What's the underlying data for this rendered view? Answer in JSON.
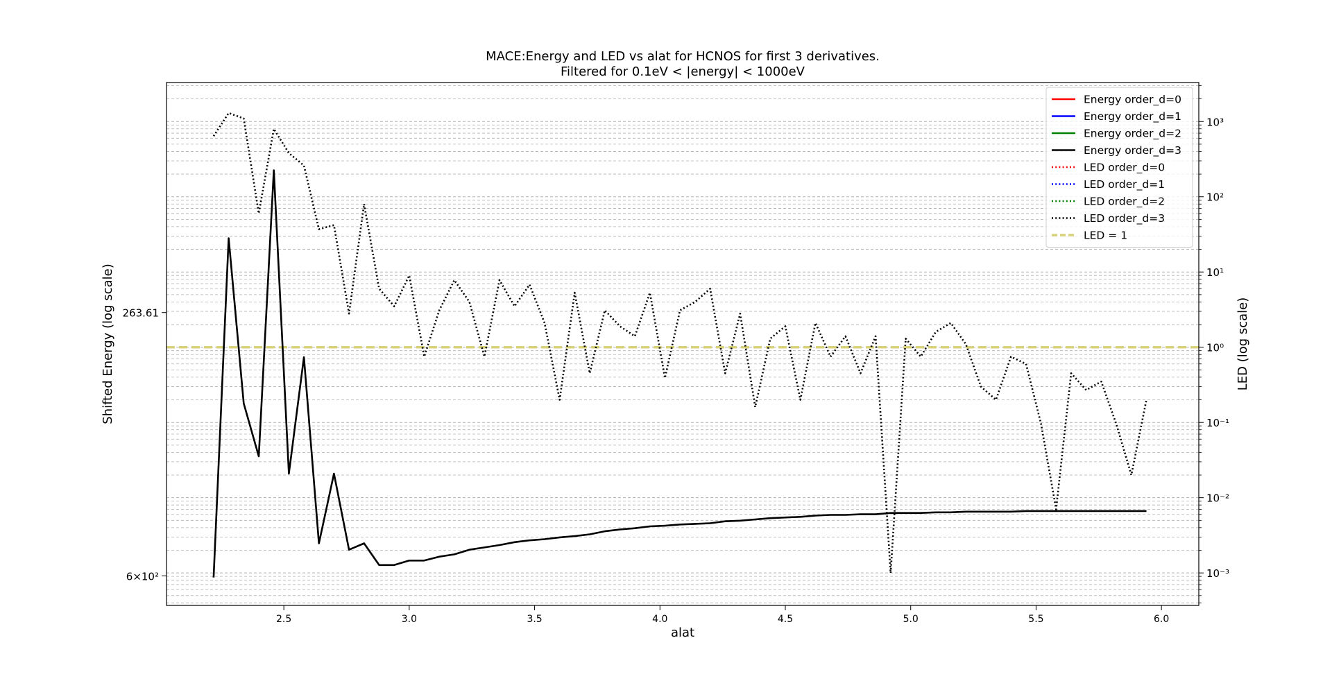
{
  "chart_data": {
    "type": "line",
    "title": "MACE:Energy and LED vs alat for HCNOS for first 3 derivatives.",
    "subtitle": "Filtered for 0.1eV < |energy| < 1000eV",
    "x_label": "alat",
    "y_label": "Shifted Energy (log scale)",
    "y2_label": "LED (log scale)",
    "xlim": [
      2.032,
      6.149
    ],
    "xticks": [
      2.5,
      {
        "value": 3,
        "label": "3.0"
      },
      3.5,
      {
        "value": 4,
        "label": "4.0"
      },
      4.5,
      {
        "value": 5,
        "label": "5.0"
      },
      5.5,
      {
        "value": 6,
        "label": "6.0"
      }
    ],
    "ylog": true,
    "ylim": [
      658,
      128.5
    ],
    "yticks": [
      {
        "value": 263.61,
        "label": "263.61"
      },
      {
        "value": 600,
        "label": "6×10²"
      }
    ],
    "y2log": true,
    "y2lim": [
      0.00037,
      3300
    ],
    "y2ticks": [
      {
        "value": 0.001,
        "label": "10⁻³"
      },
      {
        "value": 0.01,
        "label": "10⁻²"
      },
      {
        "value": 0.1,
        "label": "10⁻¹"
      },
      {
        "value": 1,
        "label": "10⁰"
      },
      {
        "value": 10,
        "label": "10¹"
      },
      {
        "value": 100,
        "label": "10²"
      },
      {
        "value": 1000,
        "label": "10³"
      }
    ],
    "grid": true,
    "legend_position": "upper right",
    "x": [
      2.22,
      2.28,
      2.34,
      2.4,
      2.46,
      2.52,
      2.58,
      2.64,
      2.7,
      2.76,
      2.82,
      2.88,
      2.94,
      3.0,
      3.06,
      3.12,
      3.18,
      3.24,
      3.3,
      3.36,
      3.42,
      3.48,
      3.54,
      3.6,
      3.66,
      3.72,
      3.78,
      3.84,
      3.9,
      3.96,
      4.02,
      4.08,
      4.14,
      4.2,
      4.26,
      4.32,
      4.38,
      4.44,
      4.5,
      4.56,
      4.62,
      4.68,
      4.74,
      4.8,
      4.86,
      4.92,
      4.98,
      5.04,
      5.1,
      5.16,
      5.22,
      5.28,
      5.34,
      5.4,
      5.46,
      5.52,
      5.58,
      5.64,
      5.7,
      5.76,
      5.82,
      5.88,
      5.94
    ],
    "series": [
      {
        "name": "Energy order_d=0",
        "color": "#ff0000",
        "linestyle": "solid",
        "axis": "y",
        "values": [
          null,
          null,
          null,
          null,
          null,
          null,
          null,
          null,
          null,
          null,
          null,
          null,
          null,
          null,
          null,
          null,
          null,
          null,
          null,
          null,
          null,
          null,
          null,
          null,
          null,
          null,
          null,
          null,
          null,
          null,
          null,
          null,
          null,
          null,
          null,
          null,
          null,
          null,
          null,
          null,
          null,
          null,
          null,
          null,
          null,
          null,
          null,
          null,
          null,
          null,
          null,
          null,
          null,
          null,
          null,
          null,
          null,
          null,
          null,
          null,
          null,
          null,
          null
        ]
      },
      {
        "name": "Energy order_d=1",
        "color": "#0000ff",
        "linestyle": "solid",
        "axis": "y",
        "values": [
          null,
          null,
          null,
          null,
          null,
          null,
          null,
          null,
          null,
          null,
          null,
          null,
          null,
          null,
          null,
          null,
          null,
          null,
          null,
          null,
          null,
          null,
          null,
          null,
          null,
          null,
          null,
          null,
          null,
          null,
          null,
          null,
          null,
          null,
          null,
          null,
          null,
          null,
          null,
          null,
          null,
          null,
          null,
          null,
          null,
          null,
          null,
          null,
          null,
          null,
          null,
          null,
          null,
          null,
          null,
          null,
          null,
          null,
          null,
          null,
          null,
          null,
          null
        ]
      },
      {
        "name": "Energy order_d=2",
        "color": "#008000",
        "linestyle": "solid",
        "axis": "y",
        "values": [
          null,
          null,
          null,
          null,
          null,
          null,
          null,
          null,
          null,
          null,
          null,
          null,
          null,
          null,
          null,
          null,
          null,
          null,
          null,
          null,
          null,
          null,
          null,
          null,
          null,
          null,
          null,
          null,
          null,
          null,
          null,
          null,
          null,
          null,
          null,
          null,
          null,
          null,
          null,
          null,
          null,
          null,
          null,
          null,
          null,
          null,
          null,
          null,
          null,
          null,
          null,
          null,
          null,
          null,
          null,
          null,
          null,
          null,
          null,
          null,
          null,
          null,
          null
        ]
      },
      {
        "name": "Energy order_d=3",
        "color": "#000000",
        "linestyle": "solid",
        "axis": "y",
        "values": [
          603,
          209,
          350,
          413,
          169,
          436,
          303,
          542,
          436,
          553,
          542,
          580,
          580,
          572,
          572,
          565,
          561,
          553,
          549,
          545,
          540,
          537,
          535,
          532,
          530,
          527,
          522,
          519,
          517,
          514,
          513,
          511,
          510,
          509,
          506,
          505,
          503,
          501,
          500,
          499,
          497,
          496,
          496,
          495,
          495,
          493,
          493,
          493,
          492,
          492,
          491,
          491,
          491,
          491,
          490,
          490,
          490,
          490,
          490,
          490,
          490,
          490,
          490
        ]
      },
      {
        "name": "LED order_d=0",
        "color": "#ff0000",
        "linestyle": "dotted",
        "axis": "y2",
        "values": [
          null,
          null,
          null,
          null,
          null,
          null,
          null,
          null,
          null,
          null,
          null,
          null,
          null,
          null,
          null,
          null,
          null,
          null,
          null,
          null,
          null,
          null,
          null,
          null,
          null,
          null,
          null,
          null,
          null,
          null,
          null,
          null,
          null,
          null,
          null,
          null,
          null,
          null,
          null,
          null,
          null,
          null,
          null,
          null,
          null,
          null,
          null,
          null,
          null,
          null,
          null,
          null,
          null,
          null,
          null,
          null,
          null,
          null,
          null,
          null,
          null,
          null,
          null
        ]
      },
      {
        "name": "LED order_d=1",
        "color": "#0000ff",
        "linestyle": "dotted",
        "axis": "y2",
        "values": [
          null,
          null,
          null,
          null,
          null,
          null,
          null,
          null,
          null,
          null,
          null,
          null,
          null,
          null,
          null,
          null,
          null,
          null,
          null,
          null,
          null,
          null,
          null,
          null,
          null,
          null,
          null,
          null,
          null,
          null,
          null,
          null,
          null,
          null,
          null,
          null,
          null,
          null,
          null,
          null,
          null,
          null,
          null,
          null,
          null,
          null,
          null,
          null,
          null,
          null,
          null,
          null,
          null,
          null,
          null,
          null,
          null,
          null,
          null,
          null,
          null,
          null,
          null
        ]
      },
      {
        "name": "LED order_d=2",
        "color": "#008000",
        "linestyle": "dotted",
        "axis": "y2",
        "values": [
          null,
          null,
          null,
          null,
          null,
          null,
          null,
          null,
          null,
          null,
          null,
          null,
          null,
          null,
          null,
          null,
          null,
          null,
          null,
          null,
          null,
          null,
          null,
          null,
          null,
          null,
          null,
          null,
          null,
          null,
          null,
          null,
          null,
          null,
          null,
          null,
          null,
          null,
          null,
          null,
          null,
          null,
          null,
          null,
          null,
          null,
          null,
          null,
          null,
          null,
          null,
          null,
          null,
          null,
          null,
          null,
          null,
          null,
          null,
          null,
          null,
          null,
          null
        ]
      },
      {
        "name": "LED order_d=3",
        "color": "#000000",
        "linestyle": "dotted",
        "axis": "y2",
        "values": [
          640,
          1300,
          1100,
          60,
          800,
          380,
          260,
          37,
          42,
          2.8,
          80,
          6,
          3.5,
          9,
          0.75,
          3.1,
          7.8,
          4,
          0.75,
          7.8,
          3.5,
          6.8,
          2.1,
          0.2,
          5.3,
          0.45,
          3.1,
          1.9,
          1.4,
          5.3,
          0.39,
          3.1,
          4,
          6,
          0.45,
          2.8,
          0.16,
          1.3,
          1.9,
          0.2,
          2.1,
          0.75,
          1.4,
          0.45,
          1.4,
          0.001,
          1.3,
          0.75,
          1.6,
          2.1,
          1.1,
          0.3,
          0.2,
          0.75,
          0.6,
          0.095,
          0.007,
          0.45,
          0.27,
          0.35,
          0.095,
          0.02,
          0.2
        ]
      }
    ],
    "hlines": [
      {
        "name": "LED = 1",
        "value": 1,
        "axis": "y2",
        "color": "#d8d27a",
        "linestyle": "dashed"
      }
    ]
  }
}
